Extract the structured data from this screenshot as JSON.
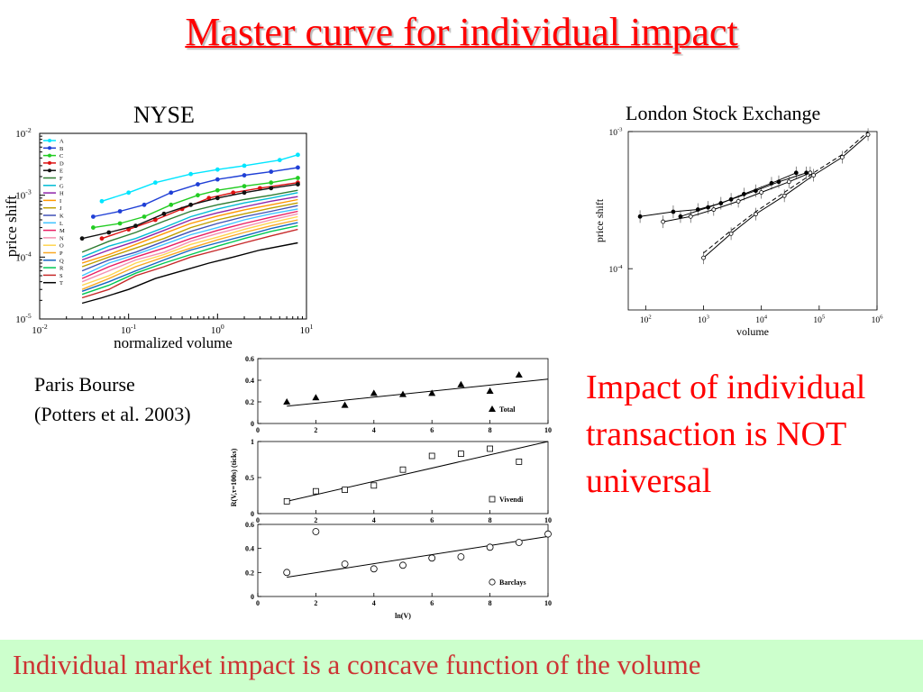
{
  "slide": {
    "title": "Master curve for individual impact",
    "nyse_label": "NYSE",
    "lse_label": "London Stock Exchange",
    "paris_label_line1": "Paris Bourse",
    "paris_label_line2": "(Potters et al. 2003)",
    "callout": "Impact of individual transaction is NOT universal",
    "footer": "Individual market impact is a concave function of the volume"
  },
  "colors": {
    "title": "#ff0000",
    "callout": "#ff0000",
    "footer_text": "#cc3333",
    "footer_bg": "#ccffcc"
  },
  "chart_data": [
    {
      "id": "nyse",
      "type": "line",
      "xscale": "log",
      "yscale": "log",
      "xlim": [
        0.01,
        10
      ],
      "ylim": [
        1e-05,
        0.01
      ],
      "xticks": [
        "10^-2",
        "10^-1",
        "10^0",
        "10^1"
      ],
      "yticks": [
        "10^-5",
        "10^-4",
        "10^-3",
        "10^-2"
      ],
      "xlabel": "normalized volume",
      "ylabel": "price shift",
      "legend_position": "top-left",
      "series": [
        {
          "name": "A",
          "color": "#00e5ff",
          "marker": true,
          "x": [
            0.05,
            0.1,
            0.2,
            0.5,
            1,
            2,
            5,
            8
          ],
          "y": [
            0.0008,
            0.0011,
            0.0016,
            0.0022,
            0.0026,
            0.003,
            0.0037,
            0.0045
          ]
        },
        {
          "name": "B",
          "color": "#1f3fd6",
          "marker": true,
          "x": [
            0.04,
            0.08,
            0.15,
            0.3,
            0.6,
            1,
            2,
            4,
            8
          ],
          "y": [
            0.00045,
            0.00055,
            0.0007,
            0.0011,
            0.0015,
            0.0018,
            0.0021,
            0.0024,
            0.0028
          ]
        },
        {
          "name": "C",
          "color": "#22cc22",
          "marker": true,
          "x": [
            0.04,
            0.08,
            0.15,
            0.3,
            0.6,
            1,
            2,
            4,
            8
          ],
          "y": [
            0.0003,
            0.00035,
            0.00045,
            0.0007,
            0.001,
            0.0012,
            0.0014,
            0.0016,
            0.0019
          ]
        },
        {
          "name": "D",
          "color": "#dd1111",
          "marker": true,
          "x": [
            0.05,
            0.1,
            0.2,
            0.4,
            0.8,
            1.5,
            3,
            8
          ],
          "y": [
            0.0002,
            0.00028,
            0.0004,
            0.0006,
            0.0009,
            0.0011,
            0.0013,
            0.0016
          ]
        },
        {
          "name": "E",
          "color": "#111111",
          "marker": true,
          "x": [
            0.03,
            0.06,
            0.12,
            0.25,
            0.5,
            1,
            2,
            4,
            8
          ],
          "y": [
            0.0002,
            0.00025,
            0.00032,
            0.0005,
            0.0007,
            0.0009,
            0.0011,
            0.0013,
            0.0015
          ]
        },
        {
          "name": "F",
          "color": "#2e7d32",
          "marker": false,
          "x": [
            0.03,
            0.06,
            0.12,
            0.25,
            0.5,
            1,
            2,
            4,
            8
          ],
          "y": [
            0.00012,
            0.00018,
            0.00025,
            0.00038,
            0.00055,
            0.0007,
            0.00085,
            0.001,
            0.0012
          ]
        },
        {
          "name": "G",
          "color": "#00bcd4",
          "marker": false,
          "x": [
            0.03,
            0.06,
            0.12,
            0.25,
            0.5,
            1,
            2,
            4,
            8
          ],
          "y": [
            0.0001,
            0.00015,
            0.0002,
            0.0003,
            0.00045,
            0.0006,
            0.00075,
            0.0009,
            0.0011
          ]
        },
        {
          "name": "H",
          "color": "#8e24aa",
          "marker": false,
          "x": [
            0.03,
            0.06,
            0.12,
            0.25,
            0.5,
            1,
            2,
            4,
            8
          ],
          "y": [
            9e-05,
            0.00013,
            0.00018,
            0.00027,
            0.0004,
            0.00052,
            0.00065,
            0.0008,
            0.00095
          ]
        },
        {
          "name": "I",
          "color": "#ff9800",
          "marker": false,
          "x": [
            0.03,
            0.06,
            0.12,
            0.25,
            0.5,
            1,
            2,
            4,
            8
          ],
          "y": [
            8e-05,
            0.00011,
            0.00016,
            0.00024,
            0.00035,
            0.00046,
            0.00058,
            0.0007,
            0.00085
          ]
        },
        {
          "name": "J",
          "color": "#c0a000",
          "marker": false,
          "x": [
            0.03,
            0.06,
            0.12,
            0.25,
            0.5,
            1,
            2,
            4,
            8
          ],
          "y": [
            7e-05,
            0.0001,
            0.00014,
            0.0002,
            0.0003,
            0.0004,
            0.0005,
            0.00062,
            0.00075
          ]
        },
        {
          "name": "K",
          "color": "#3f51b5",
          "marker": false,
          "x": [
            0.03,
            0.06,
            0.12,
            0.25,
            0.5,
            1,
            2,
            4,
            8
          ],
          "y": [
            6e-05,
            9e-05,
            0.00012,
            0.00018,
            0.00026,
            0.00035,
            0.00045,
            0.00055,
            0.00068
          ]
        },
        {
          "name": "L",
          "color": "#40c4ff",
          "marker": false,
          "x": [
            0.03,
            0.06,
            0.12,
            0.25,
            0.5,
            1,
            2,
            4,
            8
          ],
          "y": [
            5e-05,
            8e-05,
            0.00011,
            0.00016,
            0.00023,
            0.0003,
            0.0004,
            0.0005,
            0.0006
          ]
        },
        {
          "name": "M",
          "color": "#e91e63",
          "marker": false,
          "x": [
            0.03,
            0.06,
            0.12,
            0.25,
            0.5,
            1,
            2,
            4,
            8
          ],
          "y": [
            4.5e-05,
            7e-05,
            0.0001,
            0.00014,
            0.0002,
            0.00027,
            0.00035,
            0.00044,
            0.00055
          ]
        },
        {
          "name": "N",
          "color": "#f48fb1",
          "marker": false,
          "x": [
            0.03,
            0.06,
            0.12,
            0.25,
            0.5,
            1,
            2,
            4,
            8
          ],
          "y": [
            4e-05,
            6e-05,
            9e-05,
            0.00012,
            0.00018,
            0.00024,
            0.00031,
            0.0004,
            0.0005
          ]
        },
        {
          "name": "O",
          "color": "#ffd54f",
          "marker": false,
          "x": [
            0.03,
            0.06,
            0.12,
            0.25,
            0.5,
            1,
            2,
            4,
            8
          ],
          "y": [
            3.5e-05,
            5e-05,
            8e-05,
            0.00011,
            0.00016,
            0.00021,
            0.00028,
            0.00036,
            0.00045
          ]
        },
        {
          "name": "P",
          "color": "#f9a825",
          "marker": false,
          "x": [
            0.03,
            0.06,
            0.12,
            0.25,
            0.5,
            1,
            2,
            4,
            8
          ],
          "y": [
            3e-05,
            4.5e-05,
            7e-05,
            0.0001,
            0.00014,
            0.00019,
            0.00025,
            0.00032,
            0.0004
          ]
        },
        {
          "name": "Q",
          "color": "#1565c0",
          "marker": false,
          "x": [
            0.03,
            0.06,
            0.12,
            0.25,
            0.5,
            1,
            2,
            4,
            8
          ],
          "y": [
            2.8e-05,
            4e-05,
            6e-05,
            9e-05,
            0.00013,
            0.00017,
            0.00022,
            0.00029,
            0.00036
          ]
        },
        {
          "name": "R",
          "color": "#00c853",
          "marker": false,
          "x": [
            0.03,
            0.06,
            0.12,
            0.25,
            0.5,
            1,
            2,
            4,
            8
          ],
          "y": [
            2.5e-05,
            3.5e-05,
            5.5e-05,
            8e-05,
            0.00011,
            0.00015,
            0.0002,
            0.00026,
            0.00032
          ]
        },
        {
          "name": "S",
          "color": "#c62828",
          "marker": false,
          "x": [
            0.03,
            0.06,
            0.12,
            0.25,
            0.5,
            1,
            2,
            4,
            8
          ],
          "y": [
            2.2e-05,
            3e-05,
            5e-05,
            7e-05,
            0.0001,
            0.00013,
            0.00017,
            0.00022,
            0.00028
          ]
        },
        {
          "name": "T",
          "color": "#000000",
          "marker": false,
          "x": [
            0.03,
            0.05,
            0.1,
            0.2,
            0.4,
            0.8,
            1.5,
            3,
            8
          ],
          "y": [
            1.8e-05,
            2.2e-05,
            3e-05,
            4.5e-05,
            6e-05,
            8e-05,
            0.0001,
            0.00013,
            0.00017
          ]
        }
      ]
    },
    {
      "id": "lse",
      "type": "line",
      "xscale": "log",
      "yscale": "log",
      "xlim": [
        50,
        1000000
      ],
      "ylim": [
        5e-05,
        0.001
      ],
      "xticks": [
        "10^2",
        "10^3",
        "10^4",
        "10^5",
        "10^6"
      ],
      "yticks": [
        "10^-4",
        "10^-3"
      ],
      "xlabel": "volume",
      "ylabel": "price shift",
      "series": [
        {
          "name": "",
          "style": "solid",
          "marker": "filled",
          "x": [
            80,
            300,
            800,
            2000,
            5000,
            15000,
            40000
          ],
          "y": [
            0.00024,
            0.00026,
            0.00027,
            0.0003,
            0.00035,
            0.00042,
            0.0005
          ]
        },
        {
          "name": "",
          "style": "solid",
          "marker": "open",
          "x": [
            200,
            600,
            1500,
            4000,
            10000,
            30000,
            70000
          ],
          "y": [
            0.00022,
            0.00024,
            0.00027,
            0.00031,
            0.00036,
            0.00043,
            0.0005
          ]
        },
        {
          "name": "",
          "style": "solid",
          "marker": "filled",
          "x": [
            400,
            1200,
            3000,
            8000,
            20000,
            60000
          ],
          "y": [
            0.00024,
            0.00028,
            0.00032,
            0.00037,
            0.00043,
            0.0005
          ]
        },
        {
          "name": "",
          "style": "solid",
          "marker": "open",
          "x": [
            1000,
            3000,
            8000,
            25000,
            80000,
            250000,
            700000
          ],
          "y": [
            0.00012,
            0.00018,
            0.00025,
            0.00034,
            0.00048,
            0.00065,
            0.00095
          ]
        },
        {
          "name": "",
          "style": "dashed",
          "marker": "none",
          "x": [
            1000,
            3000,
            8000,
            25000,
            80000,
            250000,
            700000
          ],
          "y": [
            0.00013,
            0.00019,
            0.00026,
            0.00036,
            0.0005,
            0.00068,
            0.001
          ]
        }
      ]
    },
    {
      "id": "paris-total",
      "type": "scatter",
      "xlim": [
        0,
        10
      ],
      "ylim": [
        0,
        0.6
      ],
      "xticks": [
        "0",
        "2",
        "4",
        "6",
        "8",
        "10"
      ],
      "yticks": [
        "0",
        "0.2",
        "0.4",
        "0.6"
      ],
      "legend": "Total",
      "marker": "filled-triangle",
      "x": [
        1,
        2,
        3,
        4,
        5,
        6,
        7,
        8,
        9
      ],
      "y": [
        0.2,
        0.24,
        0.17,
        0.28,
        0.27,
        0.28,
        0.36,
        0.3,
        0.45
      ],
      "fit": {
        "x": [
          1,
          10
        ],
        "y": [
          0.16,
          0.41
        ]
      }
    },
    {
      "id": "paris-vivendi",
      "type": "scatter",
      "xlim": [
        0,
        10
      ],
      "ylim": [
        0,
        1
      ],
      "xticks": [
        "0",
        "2",
        "4",
        "6",
        "8",
        "10"
      ],
      "yticks": [
        "0",
        "0.5",
        "1"
      ],
      "ylabel": "R(V,τ=100s) (ticks)",
      "legend": "Vivendi",
      "marker": "open-square",
      "x": [
        1,
        2,
        3,
        4,
        5,
        6,
        7,
        8,
        9
      ],
      "y": [
        0.17,
        0.31,
        0.33,
        0.39,
        0.61,
        0.8,
        0.83,
        0.9,
        0.72
      ],
      "fit": {
        "x": [
          1,
          10
        ],
        "y": [
          0.17,
          1.0
        ]
      }
    },
    {
      "id": "paris-barclays",
      "type": "scatter",
      "xlim": [
        0,
        10
      ],
      "ylim": [
        0,
        0.6
      ],
      "xticks": [
        "0",
        "2",
        "4",
        "6",
        "8",
        "10"
      ],
      "yticks": [
        "0",
        "0.2",
        "0.4",
        "0.6"
      ],
      "xlabel": "ln(V)",
      "legend": "Barclays",
      "marker": "open-circle",
      "x": [
        1,
        2,
        3,
        4,
        5,
        6,
        7,
        8,
        9,
        10
      ],
      "y": [
        0.2,
        0.54,
        0.27,
        0.23,
        0.26,
        0.32,
        0.33,
        0.41,
        0.45,
        0.52
      ],
      "fit": {
        "x": [
          1,
          10
        ],
        "y": [
          0.16,
          0.5
        ]
      }
    }
  ]
}
